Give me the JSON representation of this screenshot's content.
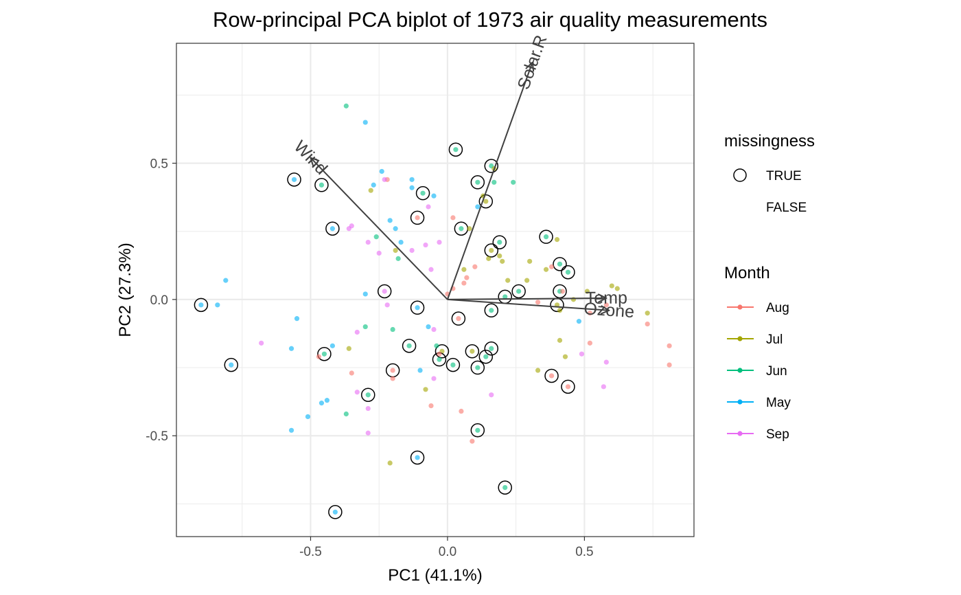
{
  "chart_data": {
    "type": "scatter",
    "title": "Row-principal PCA biplot of 1973 air quality measurements",
    "xlabel": "PC1 (41.1%)",
    "ylabel": "PC2 (27.3%)",
    "xlim": [
      -0.99,
      0.9
    ],
    "ylim": [
      -0.87,
      0.94
    ],
    "xticks": [
      -0.5,
      0.0,
      0.5
    ],
    "yticks": [
      -0.5,
      0.0,
      0.5
    ],
    "tick_labels": {
      "x": [
        "-0.5",
        "0.0",
        "0.5"
      ],
      "y": [
        "-0.5",
        "0.0",
        "0.5"
      ]
    },
    "grid": true,
    "colors": {
      "Aug": "#F8766D",
      "Jul": "#A3A500",
      "Jun": "#00BF7D",
      "May": "#00B0F6",
      "Sep": "#E76BF3",
      "arrow": "#404040",
      "panel_border": "#333333",
      "grid": "#ebebeb"
    },
    "legend": {
      "position": "right",
      "missingness": {
        "title": "missingness",
        "entries": [
          "TRUE",
          "FALSE"
        ]
      },
      "month": {
        "title": "Month",
        "entries": [
          "Aug",
          "Jul",
          "Jun",
          "May",
          "Sep"
        ]
      }
    },
    "loadings": [
      {
        "name": "Solar.R",
        "label": "Solar.R",
        "x": 0.31,
        "y": 0.87
      },
      {
        "name": "Wind",
        "label": "Wind",
        "x": -0.5,
        "y": 0.52
      },
      {
        "name": "Temp",
        "label": "Temp",
        "x": 0.58,
        "y": 0.005
      },
      {
        "name": "Ozone",
        "label": "Ozone",
        "x": 0.59,
        "y": -0.04
      }
    ],
    "points": [
      {
        "x": -0.9,
        "y": -0.02,
        "month": "May",
        "missing": true
      },
      {
        "x": -0.79,
        "y": -0.24,
        "month": "May",
        "missing": true
      },
      {
        "x": -0.56,
        "y": 0.44,
        "month": "May",
        "missing": true
      },
      {
        "x": -0.46,
        "y": 0.42,
        "month": "Jun",
        "missing": true
      },
      {
        "x": -0.42,
        "y": 0.26,
        "month": "May",
        "missing": true
      },
      {
        "x": -0.45,
        "y": -0.2,
        "month": "Jun",
        "missing": true
      },
      {
        "x": -0.29,
        "y": -0.35,
        "month": "Jun",
        "missing": true
      },
      {
        "x": -0.41,
        "y": -0.78,
        "month": "May",
        "missing": true
      },
      {
        "x": -0.23,
        "y": 0.03,
        "month": "Sep",
        "missing": true
      },
      {
        "x": -0.2,
        "y": -0.26,
        "month": "Aug",
        "missing": true
      },
      {
        "x": -0.11,
        "y": -0.58,
        "month": "May",
        "missing": true
      },
      {
        "x": -0.11,
        "y": -0.03,
        "month": "May",
        "missing": true
      },
      {
        "x": -0.11,
        "y": 0.3,
        "month": "Aug",
        "missing": true
      },
      {
        "x": -0.09,
        "y": 0.39,
        "month": "Jun",
        "missing": true
      },
      {
        "x": -0.14,
        "y": -0.17,
        "month": "Jun",
        "missing": true
      },
      {
        "x": -0.02,
        "y": -0.19,
        "month": "Jul",
        "missing": true
      },
      {
        "x": -0.03,
        "y": -0.22,
        "month": "Jun",
        "missing": true
      },
      {
        "x": 0.03,
        "y": 0.55,
        "month": "Jun",
        "missing": true
      },
      {
        "x": 0.05,
        "y": 0.26,
        "month": "Jun",
        "missing": true
      },
      {
        "x": 0.04,
        "y": -0.07,
        "month": "Aug",
        "missing": true
      },
      {
        "x": 0.02,
        "y": -0.24,
        "month": "Jun",
        "missing": true
      },
      {
        "x": 0.09,
        "y": -0.19,
        "month": "Jul",
        "missing": true
      },
      {
        "x": 0.11,
        "y": -0.48,
        "month": "Jun",
        "missing": true
      },
      {
        "x": 0.11,
        "y": -0.25,
        "month": "Jun",
        "missing": true
      },
      {
        "x": 0.11,
        "y": 0.43,
        "month": "Jun",
        "missing": true
      },
      {
        "x": 0.14,
        "y": 0.36,
        "month": "Jul",
        "missing": true
      },
      {
        "x": 0.14,
        "y": -0.21,
        "month": "Jun",
        "missing": true
      },
      {
        "x": 0.16,
        "y": -0.18,
        "month": "Jun",
        "missing": true
      },
      {
        "x": 0.16,
        "y": 0.49,
        "month": "Jun",
        "missing": true
      },
      {
        "x": 0.16,
        "y": 0.18,
        "month": "Jul",
        "missing": true
      },
      {
        "x": 0.16,
        "y": -0.04,
        "month": "Jun",
        "missing": true
      },
      {
        "x": 0.19,
        "y": 0.21,
        "month": "Jun",
        "missing": true
      },
      {
        "x": 0.21,
        "y": 0.01,
        "month": "Jun",
        "missing": true
      },
      {
        "x": 0.21,
        "y": -0.69,
        "month": "Jun",
        "missing": true
      },
      {
        "x": 0.26,
        "y": 0.03,
        "month": "Jun",
        "missing": true
      },
      {
        "x": 0.36,
        "y": 0.23,
        "month": "Jun",
        "missing": true
      },
      {
        "x": 0.38,
        "y": -0.28,
        "month": "Aug",
        "missing": true
      },
      {
        "x": 0.4,
        "y": -0.02,
        "month": "Jul",
        "missing": true
      },
      {
        "x": 0.41,
        "y": 0.03,
        "month": "Jun",
        "missing": true
      },
      {
        "x": 0.41,
        "y": 0.13,
        "month": "Jun",
        "missing": true
      },
      {
        "x": 0.44,
        "y": 0.1,
        "month": "Jun",
        "missing": true
      },
      {
        "x": 0.44,
        "y": -0.32,
        "month": "Aug",
        "missing": true
      },
      {
        "x": -0.37,
        "y": 0.71,
        "month": "Jun",
        "missing": false
      },
      {
        "x": -0.3,
        "y": 0.65,
        "month": "May",
        "missing": false
      },
      {
        "x": -0.24,
        "y": 0.47,
        "month": "May",
        "missing": false
      },
      {
        "x": -0.22,
        "y": 0.44,
        "month": "Aug",
        "missing": false
      },
      {
        "x": -0.23,
        "y": 0.44,
        "month": "Sep",
        "missing": false
      },
      {
        "x": -0.27,
        "y": 0.42,
        "month": "May",
        "missing": false
      },
      {
        "x": -0.28,
        "y": 0.4,
        "month": "Jul",
        "missing": false
      },
      {
        "x": -0.13,
        "y": 0.44,
        "month": "May",
        "missing": false
      },
      {
        "x": -0.13,
        "y": 0.41,
        "month": "May",
        "missing": false
      },
      {
        "x": -0.05,
        "y": 0.38,
        "month": "May",
        "missing": false
      },
      {
        "x": -0.07,
        "y": 0.34,
        "month": "Sep",
        "missing": false
      },
      {
        "x": -0.21,
        "y": 0.29,
        "month": "May",
        "missing": false
      },
      {
        "x": -0.19,
        "y": 0.26,
        "month": "May",
        "missing": false
      },
      {
        "x": -0.35,
        "y": 0.27,
        "month": "Sep",
        "missing": false
      },
      {
        "x": -0.36,
        "y": 0.26,
        "month": "Sep",
        "missing": false
      },
      {
        "x": -0.26,
        "y": 0.23,
        "month": "Jun",
        "missing": false
      },
      {
        "x": -0.29,
        "y": 0.21,
        "month": "Sep",
        "missing": false
      },
      {
        "x": -0.17,
        "y": 0.21,
        "month": "May",
        "missing": false
      },
      {
        "x": -0.13,
        "y": 0.18,
        "month": "Sep",
        "missing": false
      },
      {
        "x": -0.08,
        "y": 0.2,
        "month": "Sep",
        "missing": false
      },
      {
        "x": -0.03,
        "y": 0.21,
        "month": "Sep",
        "missing": false
      },
      {
        "x": -0.19,
        "y": 0.18,
        "month": "Jul",
        "missing": false
      },
      {
        "x": -0.18,
        "y": 0.15,
        "month": "Jun",
        "missing": false
      },
      {
        "x": -0.25,
        "y": 0.17,
        "month": "Sep",
        "missing": false
      },
      {
        "x": -0.06,
        "y": 0.11,
        "month": "Sep",
        "missing": false
      },
      {
        "x": -0.81,
        "y": 0.07,
        "month": "May",
        "missing": false
      },
      {
        "x": -0.84,
        "y": -0.02,
        "month": "May",
        "missing": false
      },
      {
        "x": -0.55,
        "y": -0.07,
        "month": "May",
        "missing": false
      },
      {
        "x": -0.3,
        "y": 0.02,
        "month": "May",
        "missing": false
      },
      {
        "x": -0.22,
        "y": -0.02,
        "month": "Sep",
        "missing": false
      },
      {
        "x": -0.3,
        "y": -0.1,
        "month": "Jun",
        "missing": false
      },
      {
        "x": -0.33,
        "y": -0.12,
        "month": "Sep",
        "missing": false
      },
      {
        "x": -0.2,
        "y": -0.11,
        "month": "Jun",
        "missing": false
      },
      {
        "x": -0.68,
        "y": -0.16,
        "month": "Sep",
        "missing": false
      },
      {
        "x": -0.57,
        "y": -0.18,
        "month": "May",
        "missing": false
      },
      {
        "x": -0.47,
        "y": -0.21,
        "month": "Aug",
        "missing": false
      },
      {
        "x": -0.42,
        "y": -0.17,
        "month": "May",
        "missing": false
      },
      {
        "x": -0.36,
        "y": -0.18,
        "month": "Jul",
        "missing": false
      },
      {
        "x": -0.35,
        "y": -0.27,
        "month": "Aug",
        "missing": false
      },
      {
        "x": -0.2,
        "y": -0.29,
        "month": "Aug",
        "missing": false
      },
      {
        "x": -0.1,
        "y": -0.26,
        "month": "May",
        "missing": false
      },
      {
        "x": -0.05,
        "y": -0.29,
        "month": "Sep",
        "missing": false
      },
      {
        "x": -0.07,
        "y": -0.1,
        "month": "May",
        "missing": false
      },
      {
        "x": -0.05,
        "y": -0.11,
        "month": "Sep",
        "missing": false
      },
      {
        "x": -0.04,
        "y": -0.17,
        "month": "Jun",
        "missing": false
      },
      {
        "x": -0.03,
        "y": -0.2,
        "month": "Aug",
        "missing": false
      },
      {
        "x": -0.33,
        "y": -0.34,
        "month": "Sep",
        "missing": false
      },
      {
        "x": -0.44,
        "y": -0.37,
        "month": "May",
        "missing": false
      },
      {
        "x": -0.46,
        "y": -0.38,
        "month": "May",
        "missing": false
      },
      {
        "x": -0.51,
        "y": -0.43,
        "month": "May",
        "missing": false
      },
      {
        "x": -0.57,
        "y": -0.48,
        "month": "May",
        "missing": false
      },
      {
        "x": -0.37,
        "y": -0.42,
        "month": "Jun",
        "missing": false
      },
      {
        "x": -0.29,
        "y": -0.4,
        "month": "Sep",
        "missing": false
      },
      {
        "x": -0.29,
        "y": -0.49,
        "month": "Sep",
        "missing": false
      },
      {
        "x": -0.08,
        "y": -0.33,
        "month": "Jul",
        "missing": false
      },
      {
        "x": -0.06,
        "y": -0.39,
        "month": "Aug",
        "missing": false
      },
      {
        "x": 0.05,
        "y": -0.41,
        "month": "Aug",
        "missing": false
      },
      {
        "x": 0.09,
        "y": -0.52,
        "month": "Aug",
        "missing": false
      },
      {
        "x": 0.16,
        "y": -0.35,
        "month": "Sep",
        "missing": false
      },
      {
        "x": -0.21,
        "y": -0.6,
        "month": "Jul",
        "missing": false
      },
      {
        "x": 0.0,
        "y": 0.02,
        "month": "Aug",
        "missing": false
      },
      {
        "x": 0.02,
        "y": 0.04,
        "month": "Aug",
        "missing": false
      },
      {
        "x": 0.06,
        "y": 0.06,
        "month": "Aug",
        "missing": false
      },
      {
        "x": 0.07,
        "y": 0.08,
        "month": "Aug",
        "missing": false
      },
      {
        "x": 0.06,
        "y": 0.11,
        "month": "Jul",
        "missing": false
      },
      {
        "x": 0.1,
        "y": 0.12,
        "month": "Aug",
        "missing": false
      },
      {
        "x": 0.02,
        "y": 0.3,
        "month": "Aug",
        "missing": false
      },
      {
        "x": 0.08,
        "y": 0.26,
        "month": "Jul",
        "missing": false
      },
      {
        "x": 0.11,
        "y": 0.34,
        "month": "May",
        "missing": false
      },
      {
        "x": 0.13,
        "y": 0.38,
        "month": "Jul",
        "missing": false
      },
      {
        "x": 0.17,
        "y": 0.48,
        "month": "Jul",
        "missing": false
      },
      {
        "x": 0.17,
        "y": 0.43,
        "month": "Jun",
        "missing": false
      },
      {
        "x": 0.24,
        "y": 0.43,
        "month": "Jun",
        "missing": false
      },
      {
        "x": 0.15,
        "y": 0.15,
        "month": "Jul",
        "missing": false
      },
      {
        "x": 0.19,
        "y": 0.16,
        "month": "Jul",
        "missing": false
      },
      {
        "x": 0.2,
        "y": 0.14,
        "month": "Jul",
        "missing": false
      },
      {
        "x": 0.22,
        "y": 0.07,
        "month": "Jul",
        "missing": false
      },
      {
        "x": 0.3,
        "y": 0.14,
        "month": "Jul",
        "missing": false
      },
      {
        "x": 0.29,
        "y": 0.07,
        "month": "Jul",
        "missing": false
      },
      {
        "x": 0.36,
        "y": 0.11,
        "month": "Jul",
        "missing": false
      },
      {
        "x": 0.38,
        "y": 0.12,
        "month": "Aug",
        "missing": false
      },
      {
        "x": 0.4,
        "y": 0.22,
        "month": "Jul",
        "missing": false
      },
      {
        "x": 0.42,
        "y": 0.03,
        "month": "Aug",
        "missing": false
      },
      {
        "x": 0.46,
        "y": 0.0,
        "month": "Jul",
        "missing": false
      },
      {
        "x": 0.51,
        "y": 0.03,
        "month": "Jul",
        "missing": false
      },
      {
        "x": 0.6,
        "y": 0.05,
        "month": "Jul",
        "missing": false
      },
      {
        "x": 0.62,
        "y": 0.04,
        "month": "Jul",
        "missing": false
      },
      {
        "x": 0.58,
        "y": -0.02,
        "month": "Aug",
        "missing": false
      },
      {
        "x": 0.33,
        "y": -0.01,
        "month": "Aug",
        "missing": false
      },
      {
        "x": 0.41,
        "y": -0.04,
        "month": "Jul",
        "missing": false
      },
      {
        "x": 0.52,
        "y": -0.05,
        "month": "Aug",
        "missing": false
      },
      {
        "x": 0.73,
        "y": -0.05,
        "month": "Jul",
        "missing": false
      },
      {
        "x": 0.73,
        "y": -0.09,
        "month": "Aug",
        "missing": false
      },
      {
        "x": 0.41,
        "y": -0.15,
        "month": "Jul",
        "missing": false
      },
      {
        "x": 0.43,
        "y": -0.21,
        "month": "Jul",
        "missing": false
      },
      {
        "x": 0.49,
        "y": -0.2,
        "month": "Sep",
        "missing": false
      },
      {
        "x": 0.52,
        "y": -0.16,
        "month": "Aug",
        "missing": false
      },
      {
        "x": 0.48,
        "y": -0.08,
        "month": "May",
        "missing": false
      },
      {
        "x": 0.33,
        "y": -0.26,
        "month": "Jul",
        "missing": false
      },
      {
        "x": 0.58,
        "y": -0.23,
        "month": "Sep",
        "missing": false
      },
      {
        "x": 0.57,
        "y": -0.32,
        "month": "Sep",
        "missing": false
      },
      {
        "x": 0.81,
        "y": -0.17,
        "month": "Aug",
        "missing": false
      },
      {
        "x": 0.81,
        "y": -0.24,
        "month": "Aug",
        "missing": false
      }
    ]
  }
}
